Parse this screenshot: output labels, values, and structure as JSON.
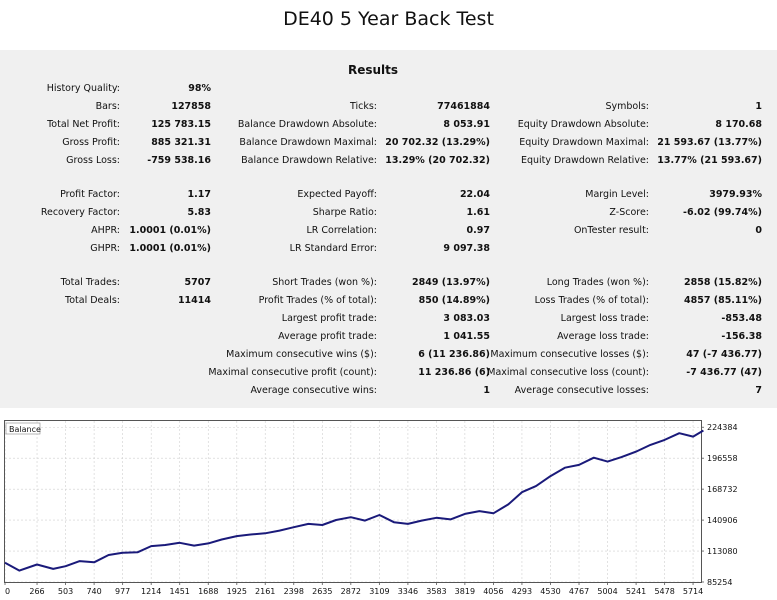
{
  "page_title": "DE40 5 Year Back Test",
  "report": {
    "heading": "Results",
    "column1": [
      {
        "label": "History Quality:",
        "value": "98%"
      },
      {
        "label": "Bars:",
        "value": "127858"
      },
      {
        "label": "Total Net Profit:",
        "value": "125 783.15"
      },
      {
        "label": "Gross Profit:",
        "value": "885 321.31"
      },
      {
        "label": "Gross Loss:",
        "value": "-759 538.16"
      },
      {
        "label": "Profit Factor:",
        "value": "1.17"
      },
      {
        "label": "Recovery Factor:",
        "value": "5.83"
      },
      {
        "label": "AHPR:",
        "value": "1.0001 (0.01%)"
      },
      {
        "label": "GHPR:",
        "value": "1.0001 (0.01%)"
      },
      {
        "label": "Total Trades:",
        "value": "5707"
      },
      {
        "label": "Total Deals:",
        "value": "11414"
      }
    ],
    "column2": [
      {
        "label": "Ticks:",
        "value": "77461884"
      },
      {
        "label": "Balance Drawdown Absolute:",
        "value": "8 053.91"
      },
      {
        "label": "Balance Drawdown Maximal:",
        "value": "20 702.32 (13.29%)"
      },
      {
        "label": "Balance Drawdown Relative:",
        "value": "13.29% (20 702.32)"
      },
      {
        "label": "Expected Payoff:",
        "value": "22.04"
      },
      {
        "label": "Sharpe Ratio:",
        "value": "1.61"
      },
      {
        "label": "LR Correlation:",
        "value": "0.97"
      },
      {
        "label": "LR Standard Error:",
        "value": "9 097.38"
      },
      {
        "label": "Short Trades (won %):",
        "value": "2849 (13.97%)"
      },
      {
        "label": "Profit Trades (% of total):",
        "value": "850 (14.89%)"
      },
      {
        "label": "Largest profit trade:",
        "value": "3 083.03"
      },
      {
        "label": "Average profit trade:",
        "value": "1 041.55"
      },
      {
        "label": "Maximum consecutive wins ($):",
        "value": "6 (11 236.86)"
      },
      {
        "label": "Maximal consecutive profit (count):",
        "value": "11 236.86 (6)"
      },
      {
        "label": "Average consecutive wins:",
        "value": "1"
      }
    ],
    "column3": [
      {
        "label": "Symbols:",
        "value": "1"
      },
      {
        "label": "Equity Drawdown Absolute:",
        "value": "8 170.68"
      },
      {
        "label": "Equity Drawdown Maximal:",
        "value": "21 593.67 (13.77%)"
      },
      {
        "label": "Equity Drawdown Relative:",
        "value": "13.77% (21 593.67)"
      },
      {
        "label": "Margin Level:",
        "value": "3979.93%"
      },
      {
        "label": "Z-Score:",
        "value": "-6.02 (99.74%)"
      },
      {
        "label": "OnTester result:",
        "value": "0"
      },
      {
        "label": "Long Trades (won %):",
        "value": "2858 (15.82%)"
      },
      {
        "label": "Loss Trades (% of total):",
        "value": "4857 (85.11%)"
      },
      {
        "label": "Largest loss trade:",
        "value": "-853.48"
      },
      {
        "label": "Average loss trade:",
        "value": "-156.38"
      },
      {
        "label": "Maximum consecutive losses ($):",
        "value": "47 (-7 436.77)"
      },
      {
        "label": "Maximal consecutive loss (count):",
        "value": "-7 436.77 (47)"
      },
      {
        "label": "Average consecutive losses:",
        "value": "7"
      }
    ]
  },
  "chart_data": {
    "type": "line",
    "title": "Balance",
    "series": [
      {
        "name": "Balance",
        "color": "#1a1a7a",
        "x": [
          0,
          120,
          266,
          400,
          503,
          620,
          740,
          860,
          977,
          1100,
          1214,
          1330,
          1451,
          1570,
          1688,
          1800,
          1925,
          2040,
          2161,
          2280,
          2398,
          2520,
          2635,
          2750,
          2872,
          2990,
          3109,
          3230,
          3346,
          3460,
          3583,
          3700,
          3819,
          3940,
          4056,
          4180,
          4293,
          4410,
          4530,
          4650,
          4767,
          4890,
          5004,
          5120,
          5241,
          5360,
          5478,
          5600,
          5714,
          5800
        ],
        "values": [
          102500,
          95500,
          101000,
          97000,
          99500,
          104000,
          103000,
          109500,
          111500,
          112000,
          117500,
          118500,
          120500,
          118000,
          120000,
          123500,
          126500,
          128000,
          129000,
          131500,
          134500,
          137500,
          136500,
          141000,
          143500,
          140500,
          145500,
          139000,
          137500,
          140500,
          143000,
          141500,
          146500,
          149000,
          147000,
          155000,
          166000,
          171500,
          180500,
          188000,
          190500,
          197000,
          193500,
          197500,
          202500,
          208500,
          213000,
          219000,
          216000,
          221500
        ]
      }
    ],
    "x_ticks": [
      0,
      266,
      503,
      740,
      977,
      1214,
      1451,
      1688,
      1925,
      2161,
      2398,
      2635,
      2872,
      3109,
      3346,
      3583,
      3819,
      4056,
      4293,
      4530,
      4767,
      5004,
      5241,
      5478,
      5714
    ],
    "y_ticks": [
      85254,
      113080,
      140906,
      168732,
      196558,
      224384
    ],
    "xlim": [
      0,
      5780
    ],
    "ylim": [
      85254,
      230000
    ],
    "xlabel": "",
    "ylabel": "",
    "grid": true
  }
}
